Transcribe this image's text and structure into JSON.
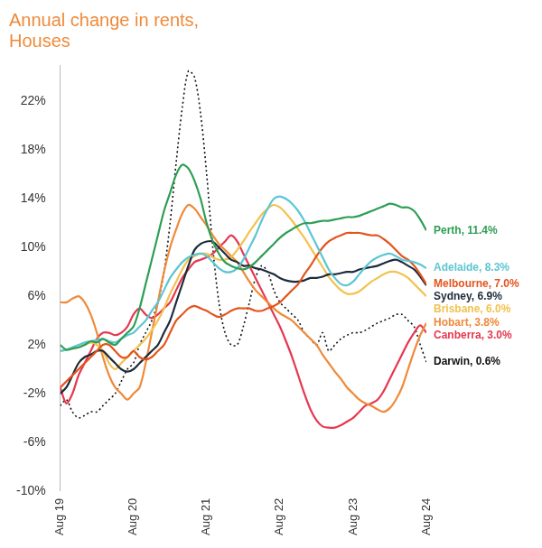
{
  "chart_data": {
    "type": "line",
    "title": "Annual change in rents, Houses",
    "categories": [
      "Aug 19",
      null,
      null,
      null,
      null,
      null,
      null,
      null,
      null,
      null,
      null,
      null,
      "Aug 20",
      null,
      null,
      null,
      null,
      null,
      null,
      null,
      null,
      null,
      null,
      null,
      "Aug 21",
      null,
      null,
      null,
      null,
      null,
      null,
      null,
      null,
      null,
      null,
      null,
      "Aug 22",
      null,
      null,
      null,
      null,
      null,
      null,
      null,
      null,
      null,
      null,
      null,
      "Aug 23",
      null,
      null,
      null,
      null,
      null,
      null,
      null,
      null,
      null,
      null,
      null,
      "Aug 24"
    ],
    "series": [
      {
        "name": "Perth, 11.4%",
        "color": "#2e9e55",
        "line_style": "solid",
        "values": [
          2.0,
          1.6,
          1.7,
          1.8,
          2.0,
          2.3,
          2.2,
          2.5,
          2.2,
          2.0,
          2.5,
          3.0,
          3.5,
          5,
          7,
          9,
          11,
          13,
          14.5,
          16,
          16.8,
          16.5,
          15.5,
          14,
          12,
          10.5,
          9.5,
          8.8,
          8.5,
          8.3,
          8.2,
          8.4,
          8.8,
          9.3,
          9.8,
          10.3,
          10.8,
          11.2,
          11.5,
          11.8,
          12.0,
          12.0,
          12.1,
          12.2,
          12.2,
          12.3,
          12.4,
          12.5,
          12.5,
          12.6,
          12.8,
          13.0,
          13.2,
          13.4,
          13.6,
          13.5,
          13.3,
          13.3,
          13.0,
          12.3,
          11.4
        ]
      },
      {
        "name": "Adelaide, 8.3%",
        "color": "#5cc6d3",
        "line_style": "solid",
        "values": [
          1.5,
          1.6,
          1.8,
          2.0,
          2.2,
          2.3,
          2.4,
          2.5,
          2.3,
          2.2,
          2.5,
          2.8,
          3.0,
          3.5,
          4.0,
          4.8,
          5.5,
          6.5,
          7.5,
          8.2,
          8.8,
          9.2,
          9.4,
          9.5,
          9.3,
          8.8,
          8.3,
          8.0,
          8.0,
          8.3,
          9.0,
          10.0,
          11.0,
          12.2,
          13.2,
          14.0,
          14.2,
          14.0,
          13.6,
          13.0,
          12.2,
          11.2,
          10.2,
          9.2,
          8.2,
          7.5,
          7.0,
          6.9,
          7.2,
          7.8,
          8.4,
          8.9,
          9.2,
          9.4,
          9.5,
          9.3,
          9.0,
          8.9,
          8.8,
          8.6,
          8.3
        ]
      },
      {
        "name": "Melbourne, 7.0%",
        "color": "#e4541d",
        "line_style": "solid",
        "values": [
          -1.5,
          -1.0,
          -0.5,
          0.0,
          0.5,
          1.0,
          1.5,
          2.0,
          2.0,
          1.5,
          1.0,
          1.0,
          1.5,
          1.0,
          0.8,
          1.0,
          1.5,
          2.0,
          3.0,
          4.0,
          4.5,
          5.0,
          5.2,
          5.0,
          4.8,
          4.5,
          4.3,
          4.5,
          4.8,
          5.0,
          5.0,
          5.0,
          4.8,
          4.8,
          5.0,
          5.2,
          5.5,
          6.0,
          6.5,
          7.0,
          7.8,
          8.5,
          9.3,
          10.0,
          10.5,
          10.8,
          11.0,
          11.2,
          11.2,
          11.2,
          11.1,
          11.0,
          11.0,
          10.7,
          10.3,
          9.8,
          9.3,
          9.0,
          8.5,
          7.8,
          7.0
        ]
      },
      {
        "name": "Sydney, 6.9%",
        "color": "#1e2b3a",
        "line_style": "solid",
        "values": [
          -2.0,
          -1.5,
          -0.5,
          0.5,
          1.0,
          1.2,
          1.5,
          1.5,
          1.0,
          0.5,
          0.0,
          -0.2,
          0.0,
          0.5,
          1.0,
          1.5,
          2.0,
          3.0,
          4.0,
          5.5,
          7.0,
          8.5,
          9.8,
          10.3,
          10.5,
          10.5,
          10.0,
          9.5,
          9.0,
          8.8,
          8.5,
          8.5,
          8.3,
          8.2,
          8.0,
          7.8,
          7.5,
          7.3,
          7.2,
          7.2,
          7.3,
          7.5,
          7.5,
          7.6,
          7.8,
          7.8,
          7.9,
          8.0,
          8.0,
          8.2,
          8.3,
          8.4,
          8.5,
          8.7,
          8.9,
          9.0,
          8.8,
          8.5,
          8.2,
          7.6,
          6.9
        ]
      },
      {
        "name": "Brisbane, 6.0%",
        "color": "#f3c24f",
        "line_style": "solid",
        "values": [
          1.5,
          1.6,
          1.7,
          1.8,
          2.0,
          2.2,
          2.0,
          1.5,
          0.5,
          0.0,
          0.5,
          1.0,
          1.5,
          2.0,
          2.5,
          3.2,
          4.0,
          5.0,
          6.2,
          7.2,
          8.2,
          9.0,
          9.3,
          9.5,
          9.5,
          9.2,
          9.0,
          9.0,
          9.2,
          9.8,
          10.5,
          11.3,
          12.0,
          12.7,
          13.2,
          13.5,
          13.3,
          12.8,
          12.2,
          11.5,
          10.8,
          10.0,
          9.2,
          8.4,
          7.6,
          7.0,
          6.5,
          6.2,
          6.2,
          6.4,
          6.8,
          7.2,
          7.5,
          7.8,
          8.0,
          8.0,
          7.8,
          7.5,
          7.0,
          6.5,
          6.0
        ]
      },
      {
        "name": "Hobart, 3.8%",
        "color": "#ef8a3a",
        "line_style": "solid",
        "values": [
          5.5,
          5.5,
          5.8,
          6.0,
          5.5,
          4.5,
          3.0,
          1.0,
          -0.5,
          -1.5,
          -2.0,
          -2.5,
          -2.0,
          -1.5,
          0.5,
          3.0,
          5.5,
          8.0,
          10.0,
          11.5,
          12.8,
          13.5,
          13.2,
          12.5,
          11.8,
          11.0,
          10.3,
          9.8,
          9.3,
          8.8,
          8.0,
          7.2,
          6.5,
          6.0,
          5.5,
          5.0,
          4.6,
          4.3,
          4.0,
          3.5,
          3.0,
          2.5,
          2.0,
          1.2,
          0.5,
          -0.2,
          -0.8,
          -1.5,
          -2.0,
          -2.5,
          -2.8,
          -3.0,
          -3.3,
          -3.5,
          -3.2,
          -2.5,
          -1.5,
          0.0,
          1.5,
          2.8,
          3.8
        ]
      },
      {
        "name": "Canberra, 3.0%",
        "color": "#e5384f",
        "line_style": "solid",
        "values": [
          -1.5,
          -2.8,
          -2.0,
          -0.5,
          0.5,
          1.5,
          2.5,
          3.0,
          3.0,
          2.8,
          3.0,
          3.5,
          4.5,
          5.0,
          4.5,
          4.2,
          4.5,
          5.0,
          5.5,
          6.5,
          7.5,
          8.2,
          8.8,
          9.0,
          9.2,
          9.5,
          10.0,
          10.5,
          11.0,
          10.5,
          9.5,
          8.5,
          7.5,
          6.5,
          5.5,
          4.5,
          3.5,
          2.3,
          1.0,
          -0.5,
          -2.0,
          -3.3,
          -4.2,
          -4.7,
          -4.8,
          -4.8,
          -4.6,
          -4.3,
          -4.0,
          -3.5,
          -3.0,
          -2.8,
          -2.5,
          -1.8,
          -0.8,
          0.2,
          1.2,
          2.2,
          3.0,
          3.6,
          3.0
        ]
      },
      {
        "name": "Darwin, 0.6%",
        "color": "#111111",
        "line_style": "dotted",
        "values": [
          -3.0,
          -2.5,
          -3.5,
          -4.0,
          -3.8,
          -3.5,
          -3.5,
          -3.0,
          -2.5,
          -2.0,
          -1.0,
          0.0,
          0.5,
          2.0,
          3.0,
          4.0,
          5.5,
          8.0,
          12.0,
          17.0,
          21.5,
          24.5,
          24.0,
          21.0,
          16.0,
          10.0,
          5.5,
          3.0,
          2.0,
          2.0,
          3.5,
          5.5,
          7.5,
          8.5,
          8.0,
          6.5,
          5.5,
          5.0,
          4.5,
          4.0,
          3.0,
          2.5,
          2.0,
          3.0,
          1.5,
          2.0,
          2.5,
          2.8,
          3.0,
          3.0,
          3.2,
          3.5,
          3.8,
          4.0,
          4.2,
          4.5,
          4.5,
          4.0,
          3.5,
          2.0,
          0.6
        ]
      }
    ],
    "ylim": [
      -10,
      25
    ],
    "yticks": [
      {
        "value": -10,
        "label": "-10%"
      },
      {
        "value": -6,
        "label": "-6%"
      },
      {
        "value": -2,
        "label": "-2%"
      },
      {
        "value": 2,
        "label": "2%"
      },
      {
        "value": 6,
        "label": "6%"
      },
      {
        "value": 10,
        "label": "10%"
      },
      {
        "value": 14,
        "label": "14%"
      },
      {
        "value": 18,
        "label": "18%"
      },
      {
        "value": 22,
        "label": "22%"
      }
    ],
    "grid": false
  }
}
